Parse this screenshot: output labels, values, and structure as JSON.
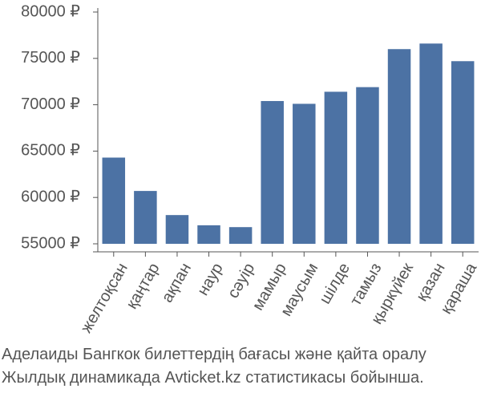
{
  "chart_data": {
    "type": "bar",
    "categories": [
      "желтоқсан",
      "қаңтар",
      "ақпан",
      "наур",
      "сәуір",
      "мамыр",
      "маусым",
      "шілде",
      "тамыз",
      "қыркүйек",
      "қазан",
      "қараша"
    ],
    "values": [
      64300,
      60700,
      58100,
      57000,
      56800,
      70400,
      70100,
      71400,
      71900,
      76000,
      76600,
      74700
    ],
    "ylim": [
      55000,
      80000
    ],
    "yticks": [
      55000,
      60000,
      65000,
      70000,
      75000,
      80000
    ],
    "ytick_labels": [
      "55000 ₽",
      "60000 ₽",
      "65000 ₽",
      "70000 ₽",
      "75000 ₽",
      "80000 ₽"
    ],
    "grid": false,
    "bar_color": "#4c72a4"
  },
  "caption": {
    "line1": "Аделаиды Бангкок билеттердің бағасы және қайта оралу",
    "line2": "Жылдық динамикада Avticket.kz статистикасы бойынша."
  }
}
